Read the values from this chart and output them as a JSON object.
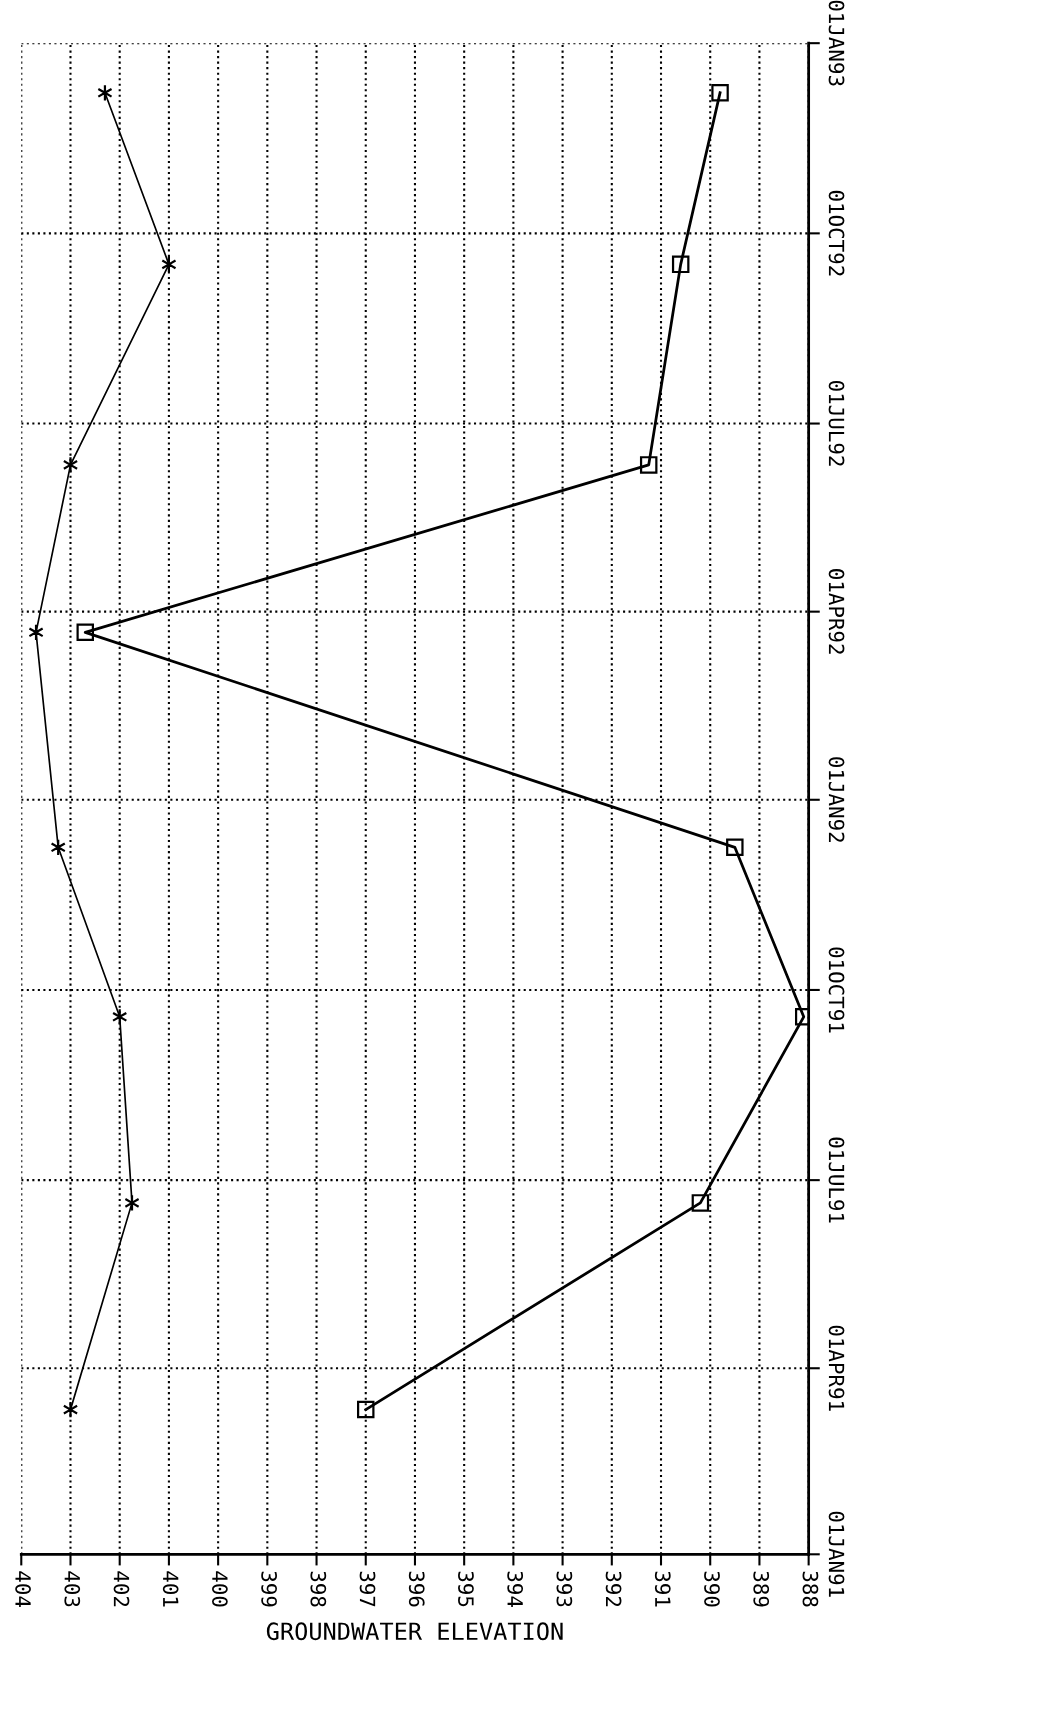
{
  "chart_data": {
    "type": "line",
    "orientation": "horizontal",
    "xlabel": "GROUNDWATER ELEVATION",
    "x": [
      "1991-03-12",
      "1991-06-20",
      "1991-09-18",
      "1991-12-09",
      "1992-03-22",
      "1992-06-11",
      "1992-09-16",
      "1992-12-08"
    ],
    "series": [
      {
        "color": "#000000",
        "marker": "square",
        "values": [
          397.0,
          390.2,
          388.1,
          389.5,
          402.7,
          391.25,
          390.6,
          389.8
        ]
      },
      {
        "color": "#000000",
        "marker": "cross",
        "values": [
          403.0,
          401.75,
          402.0,
          403.25,
          403.7,
          403.0,
          401.0,
          402.3
        ]
      }
    ],
    "ylim": [
      "1991-01-01",
      "1993-01-01"
    ],
    "yticks": [
      {
        "value": "1991-01-01",
        "label": "01JAN91"
      },
      {
        "value": "1991-04-01",
        "label": "01APR91"
      },
      {
        "value": "1991-07-01",
        "label": "01JUL91"
      },
      {
        "value": "1991-10-01",
        "label": "01OCT91"
      },
      {
        "value": "1992-01-01",
        "label": "01JAN92"
      },
      {
        "value": "1992-04-01",
        "label": "01APR92"
      },
      {
        "value": "1992-07-01",
        "label": "01JUL92"
      },
      {
        "value": "1992-10-01",
        "label": "01OCT92"
      },
      {
        "value": "1993-01-01",
        "label": "01JAN93"
      }
    ],
    "xlim": [
      404,
      388
    ],
    "xticks": [
      388,
      389,
      390,
      391,
      392,
      393,
      394,
      395,
      396,
      397,
      398,
      399,
      400,
      401,
      402,
      403,
      404
    ],
    "grid": true,
    "line_style": "solid"
  }
}
